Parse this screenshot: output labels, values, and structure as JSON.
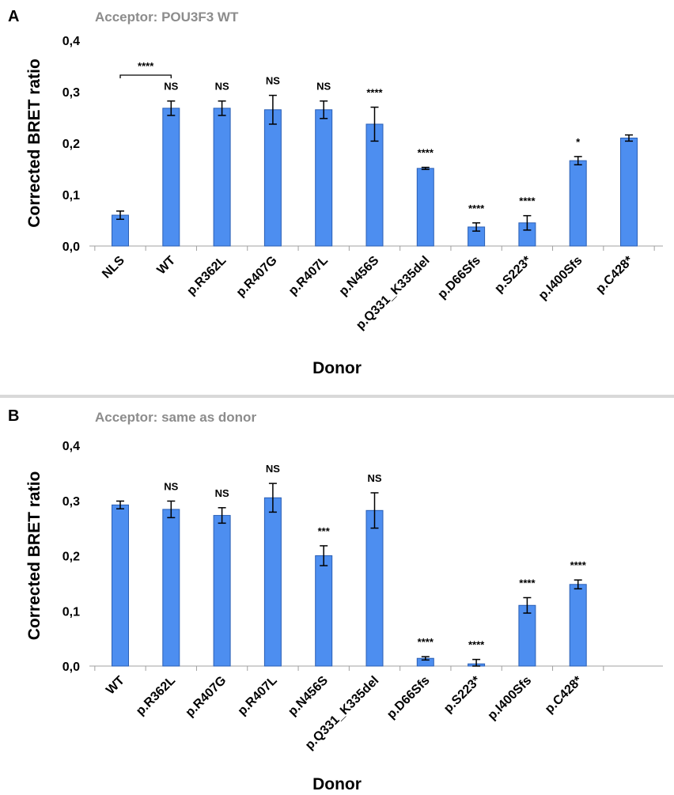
{
  "chart_data": [
    {
      "type": "bar",
      "panel": "A",
      "title": "Acceptor: POU3F3 WT",
      "xlabel": "Donor",
      "ylabel": "Corrected BRET ratio",
      "ylim": [
        0,
        0.4
      ],
      "yticks": [
        "0,0",
        "0,1",
        "0,2",
        "0,3",
        "0,4"
      ],
      "categories": [
        "NLS",
        "WT",
        "p.R362L",
        "p.R407G",
        "p.R407L",
        "p.N456S",
        "p.Q331_K335del",
        "p.D66Sfs",
        "p.S223*",
        "p.I400Sfs",
        "p.C428*"
      ],
      "values": [
        0.06,
        0.268,
        0.268,
        0.265,
        0.265,
        0.237,
        0.151,
        0.037,
        0.045,
        0.166,
        0.21
      ],
      "errors": [
        0.008,
        0.014,
        0.014,
        0.028,
        0.017,
        0.033,
        0.002,
        0.008,
        0.014,
        0.008,
        0.006
      ],
      "significance": [
        "",
        "NS",
        "NS",
        "NS",
        "NS",
        "****",
        "****",
        "****",
        "****",
        "*"
      ],
      "bracket": {
        "from": 0,
        "to": 1,
        "label": "****"
      },
      "grid": false,
      "color": "#4d8ef0"
    },
    {
      "type": "bar",
      "panel": "B",
      "title": "Acceptor: same as donor",
      "xlabel": "Donor",
      "ylabel": "Corrected BRET ratio",
      "ylim": [
        0,
        0.4
      ],
      "yticks": [
        "0,0",
        "0,1",
        "0,2",
        "0,3",
        "0,4"
      ],
      "categories": [
        "WT",
        "p.R362L",
        "p.R407G",
        "p.R407L",
        "p.N456S",
        "p.Q331_K335del",
        "p.D66Sfs",
        "p.S223*",
        "p.I400Sfs",
        "p.C428*"
      ],
      "values": [
        0.292,
        0.284,
        0.273,
        0.305,
        0.2,
        0.282,
        0.014,
        0.004,
        0.11,
        0.148
      ],
      "errors": [
        0.007,
        0.015,
        0.014,
        0.026,
        0.018,
        0.032,
        0.003,
        0.008,
        0.014,
        0.008
      ],
      "significance": [
        "",
        "NS",
        "NS",
        "NS",
        "***",
        "NS",
        "****",
        "****",
        "****",
        "****"
      ],
      "grid": false,
      "color": "#4d8ef0"
    }
  ]
}
